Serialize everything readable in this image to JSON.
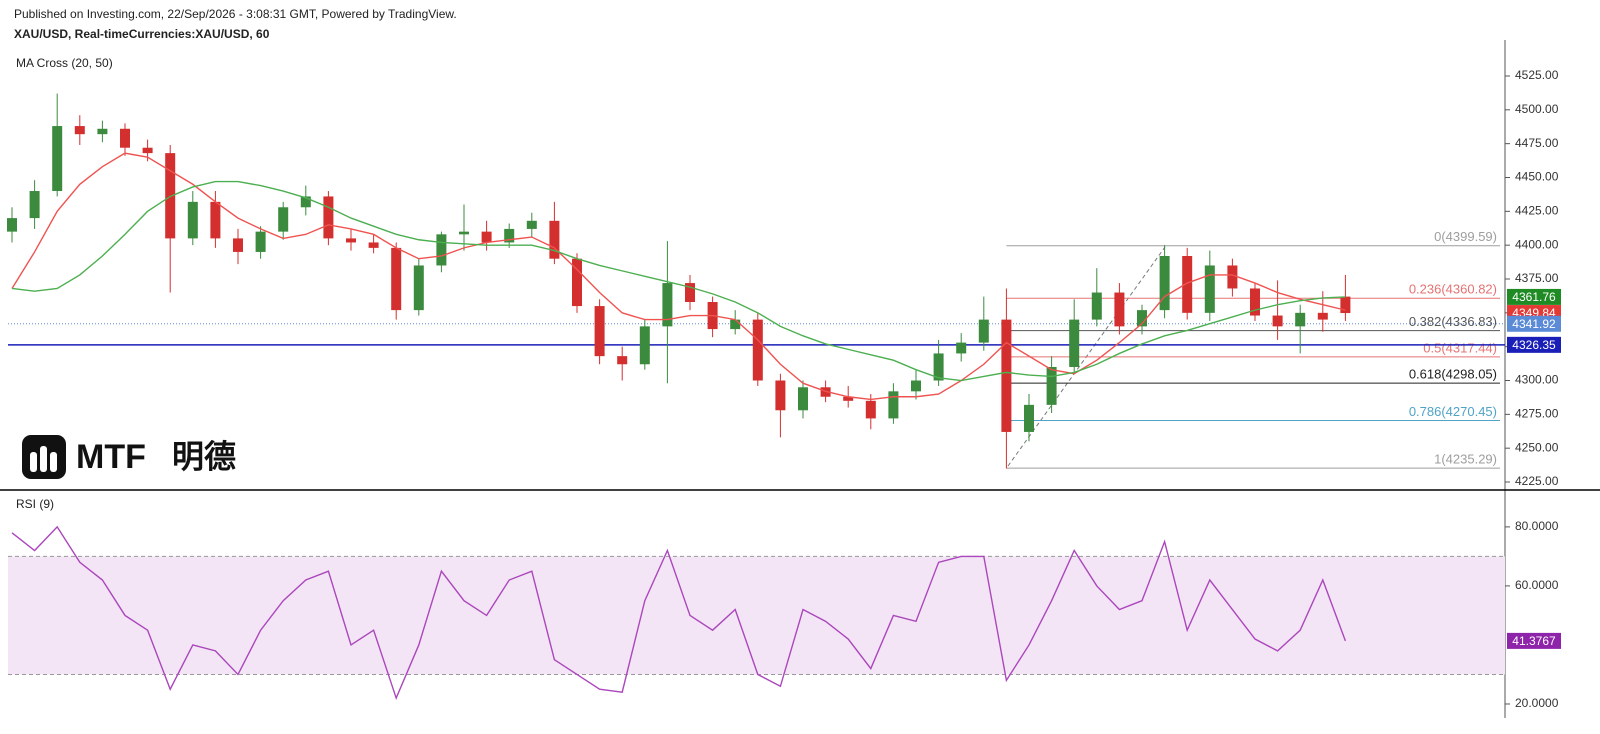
{
  "header": {
    "published": "Published on Investing.com, 22/Sep/2026 - 3:08:31 GMT, Powered by TradingView.",
    "symbol": "XAU/USD, Real-timeCurrencies:XAU/USD, 60"
  },
  "logo": {
    "text": "MTF",
    "cjk": "明德"
  },
  "chart_data": [
    {
      "type": "candlestick",
      "title": "MA Cross (20, 50)",
      "up_color": "#3b8a3e",
      "down_color": "#d32f2f",
      "open": [
        4410,
        4420,
        4440,
        4488,
        4482,
        4486,
        4472,
        4468,
        4405,
        4432,
        4405,
        4395,
        4410,
        4428,
        4436,
        4405,
        4402,
        4398,
        4352,
        4385,
        4408,
        4410,
        4402,
        4412,
        4418,
        4390,
        4355,
        4318,
        4312,
        4340,
        4372,
        4358,
        4338,
        4345,
        4300,
        4278,
        4295,
        4288,
        4285,
        4272,
        4292,
        4300,
        4320,
        4328,
        4345,
        4262,
        4282,
        4310,
        4345,
        4365,
        4340,
        4352,
        4392,
        4350,
        4385,
        4368,
        4348,
        4340,
        4350,
        4362
      ],
      "high": [
        4428,
        4448,
        4512,
        4496,
        4492,
        4490,
        4478,
        4474,
        4440,
        4440,
        4412,
        4414,
        4432,
        4444,
        4440,
        4412,
        4408,
        4402,
        4390,
        4410,
        4430,
        4418,
        4416,
        4424,
        4432,
        4394,
        4360,
        4325,
        4345,
        4403,
        4378,
        4362,
        4352,
        4350,
        4305,
        4300,
        4300,
        4296,
        4290,
        4298,
        4308,
        4330,
        4335,
        4362,
        4368,
        4290,
        4318,
        4360,
        4383,
        4372,
        4356,
        4400,
        4398,
        4396,
        4390,
        4372,
        4374,
        4356,
        4366,
        4378
      ],
      "low": [
        4402,
        4412,
        4436,
        4474,
        4476,
        4466,
        4462,
        4365,
        4400,
        4398,
        4386,
        4390,
        4404,
        4422,
        4400,
        4396,
        4394,
        4345,
        4348,
        4380,
        4396,
        4396,
        4398,
        4406,
        4386,
        4350,
        4312,
        4300,
        4308,
        4298,
        4352,
        4332,
        4334,
        4296,
        4258,
        4272,
        4284,
        4280,
        4264,
        4268,
        4286,
        4296,
        4314,
        4322,
        4235,
        4255,
        4276,
        4306,
        4340,
        4334,
        4334,
        4346,
        4345,
        4344,
        4362,
        4344,
        4330,
        4320,
        4336,
        4344
      ],
      "close": [
        4420,
        4440,
        4488,
        4482,
        4486,
        4472,
        4468,
        4405,
        4432,
        4405,
        4395,
        4410,
        4428,
        4436,
        4405,
        4402,
        4398,
        4352,
        4385,
        4408,
        4410,
        4402,
        4412,
        4418,
        4390,
        4355,
        4318,
        4312,
        4340,
        4372,
        4358,
        4338,
        4345,
        4300,
        4278,
        4295,
        4288,
        4285,
        4272,
        4292,
        4300,
        4320,
        4328,
        4345,
        4262,
        4282,
        4310,
        4345,
        4365,
        4340,
        4352,
        4392,
        4350,
        4385,
        4368,
        4348,
        4340,
        4350,
        4345,
        4349.84
      ],
      "lines": [
        {
          "color": "#ef5350",
          "values": [
            4368,
            4395,
            4425,
            4445,
            4458,
            4468,
            4465,
            4455,
            4445,
            4432,
            4420,
            4412,
            4405,
            4408,
            4415,
            4412,
            4408,
            4398,
            4390,
            4392,
            4398,
            4402,
            4404,
            4406,
            4398,
            4382,
            4365,
            4350,
            4345,
            4345,
            4348,
            4348,
            4345,
            4330,
            4312,
            4298,
            4292,
            4288,
            4286,
            4288,
            4288,
            4290,
            4300,
            4312,
            4328,
            4318,
            4308,
            4305,
            4315,
            4328,
            4342,
            4362,
            4372,
            4378,
            4378,
            4372,
            4365,
            4360,
            4356,
            4352
          ]
        },
        {
          "color": "#4caf50",
          "values": [
            4368,
            4366,
            4368,
            4378,
            4392,
            4408,
            4425,
            4436,
            4443,
            4447,
            4447,
            4444,
            4440,
            4435,
            4428,
            4420,
            4414,
            4408,
            4404,
            4402,
            4401,
            4400,
            4400,
            4400,
            4396,
            4390,
            4385,
            4381,
            4377,
            4373,
            4369,
            4364,
            4358,
            4350,
            4340,
            4333,
            4327,
            4323,
            4319,
            4315,
            4308,
            4302,
            4300,
            4303,
            4306,
            4304,
            4303,
            4306,
            4312,
            4320,
            4327,
            4333,
            4337,
            4342,
            4347,
            4352,
            4356,
            4359,
            4361,
            4361.76
          ]
        }
      ],
      "price_lines": [
        {
          "value": 4361.76,
          "color": "#1f8b24",
          "line": "none"
        },
        {
          "value": 4349.84,
          "color": "#e53935",
          "line": "none"
        },
        {
          "value": 4341.92,
          "color": "#5b8bd6",
          "line": "dotted"
        },
        {
          "value": 4326.35,
          "color": "#1a1fb8",
          "line": "solid"
        }
      ],
      "fib": [
        {
          "label": "0(4399.59)",
          "value": 4399.59,
          "color": "#9e9e9e"
        },
        {
          "label": "0.236(4360.82)",
          "value": 4360.82,
          "color": "#e57373"
        },
        {
          "label": "0.382(4336.83)",
          "value": 4336.83,
          "color": "#555555"
        },
        {
          "label": "0.5(4317.44)",
          "value": 4317.44,
          "color": "#e57373"
        },
        {
          "label": "0.618(4298.05)",
          "value": 4298.05,
          "color": "#222222"
        },
        {
          "label": "0.786(4270.45)",
          "value": 4270.45,
          "color": "#4fa3c7"
        },
        {
          "label": "1(4235.29)",
          "value": 4235.29,
          "color": "#9e9e9e"
        }
      ],
      "ylim": [
        4219.1,
        4544.2
      ],
      "yticks": [
        {
          "value": 4225,
          "label": "4225.00"
        },
        {
          "value": 4250,
          "label": "4250.00"
        },
        {
          "value": 4275,
          "label": "4275.00"
        },
        {
          "value": 4300,
          "label": "4300.00"
        },
        {
          "value": 4325,
          "label": "4325.00"
        },
        {
          "value": 4350,
          "label": "4350.00"
        },
        {
          "value": 4375,
          "label": "4375.00"
        },
        {
          "value": 4400,
          "label": "4400.00"
        },
        {
          "value": 4425,
          "label": "4425.00"
        },
        {
          "value": 4450,
          "label": "4450.00"
        },
        {
          "value": 4475,
          "label": "4475.00"
        },
        {
          "value": 4500,
          "label": "4500.00"
        },
        {
          "value": 4525,
          "label": "4525.00"
        }
      ]
    },
    {
      "type": "line",
      "title": "RSI (9)",
      "color": "#ab47bc",
      "values": [
        78,
        72,
        80,
        68,
        62,
        50,
        45,
        25,
        40,
        38,
        30,
        45,
        55,
        62,
        65,
        40,
        45,
        22,
        40,
        65,
        55,
        50,
        62,
        65,
        35,
        30,
        25,
        24,
        55,
        72,
        50,
        45,
        52,
        30,
        26,
        52,
        48,
        42,
        32,
        50,
        48,
        68,
        70,
        70,
        28,
        40,
        55,
        72,
        60,
        52,
        55,
        75,
        45,
        62,
        52,
        42,
        38,
        45,
        62,
        41.3767
      ],
      "last": {
        "value": 41.3767,
        "color": "#8e24aa"
      },
      "band": [
        30,
        70
      ],
      "band_color": "#f3e5f5",
      "ylim": [
        15.25,
        92.5
      ],
      "yticks": [
        {
          "value": 20,
          "label": "20.0000"
        },
        {
          "value": 60,
          "label": "60.0000"
        },
        {
          "value": 80,
          "label": "80.0000"
        }
      ]
    }
  ]
}
